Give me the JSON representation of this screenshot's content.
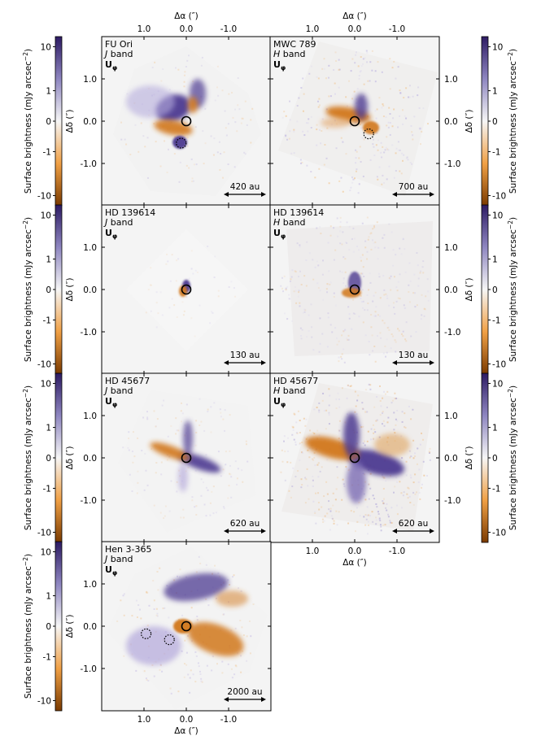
{
  "figure": {
    "panels": [
      {
        "id": "fu-ori-j",
        "target": "FU Ori",
        "band": "J",
        "band_word": "band",
        "quantity": "U",
        "quantity_sub": "φ",
        "scale_text": "420 au",
        "morphology": "fu",
        "companions": [
          [
            0.12,
            -0.52
          ]
        ],
        "col": 0,
        "row": 0
      },
      {
        "id": "mwc-789-h",
        "target": "MWC 789",
        "band": "H",
        "band_word": "band",
        "quantity": "U",
        "quantity_sub": "φ",
        "scale_text": "700 au",
        "morphology": "mwc",
        "companions": [
          [
            -0.33,
            -0.3
          ]
        ],
        "col": 1,
        "row": 0
      },
      {
        "id": "hd139614-j",
        "target": "HD 139614",
        "band": "J",
        "band_word": "band",
        "quantity": "U",
        "quantity_sub": "φ",
        "scale_text": "130 au",
        "morphology": "hd139j",
        "companions": [],
        "col": 0,
        "row": 1
      },
      {
        "id": "hd139614-h",
        "target": "HD 139614",
        "band": "H",
        "band_word": "band",
        "quantity": "U",
        "quantity_sub": "φ",
        "scale_text": "130 au",
        "morphology": "hd139h",
        "companions": [],
        "col": 1,
        "row": 1
      },
      {
        "id": "hd45677-j",
        "target": "HD 45677",
        "band": "J",
        "band_word": "band",
        "quantity": "U",
        "quantity_sub": "φ",
        "scale_text": "620 au",
        "morphology": "hd45j",
        "companions": [],
        "col": 0,
        "row": 2
      },
      {
        "id": "hd45677-h",
        "target": "HD 45677",
        "band": "H",
        "band_word": "band",
        "quantity": "U",
        "quantity_sub": "φ",
        "scale_text": "620 au",
        "morphology": "hd45h",
        "companions": [],
        "col": 1,
        "row": 2
      },
      {
        "id": "hen3-365-j",
        "target": "Hen 3-365",
        "band": "J",
        "band_word": "band",
        "quantity": "U",
        "quantity_sub": "φ",
        "scale_text": "2000 au",
        "morphology": "hen",
        "companions": [
          [
            0.4,
            -0.32
          ],
          [
            0.95,
            -0.18
          ]
        ],
        "col": 0,
        "row": 3
      }
    ],
    "axes": {
      "xlabel_symbol": "Δα",
      "ylabel_symbol": "Δδ",
      "unit": "(″)",
      "ticks": [
        1.0,
        0.0,
        -1.0
      ],
      "tick_labels": [
        "1.0",
        "0.0",
        "-1.0"
      ],
      "x_range": [
        2.0,
        -2.0
      ],
      "y_range": [
        -2.0,
        2.0
      ]
    },
    "colorbar": {
      "label": "Surface brightness (mJy arcsec",
      "label_exp": "−2",
      "label_close": ")",
      "tick_values": [
        10,
        1,
        0,
        -1,
        -10
      ],
      "tick_labels": [
        "10",
        "1",
        "0",
        "-1",
        "-10"
      ],
      "scale": "symlog",
      "colors": {
        "positive": "#2d1b63",
        "mid_positive": "#8e86c0",
        "zero": "#f6f6f6",
        "mid_negative": "#f0a045",
        "negative": "#7a3a00"
      }
    },
    "colors": {
      "purple": "#4e3a92",
      "orange": "#d2781d",
      "background": "#f4f4f4"
    }
  }
}
